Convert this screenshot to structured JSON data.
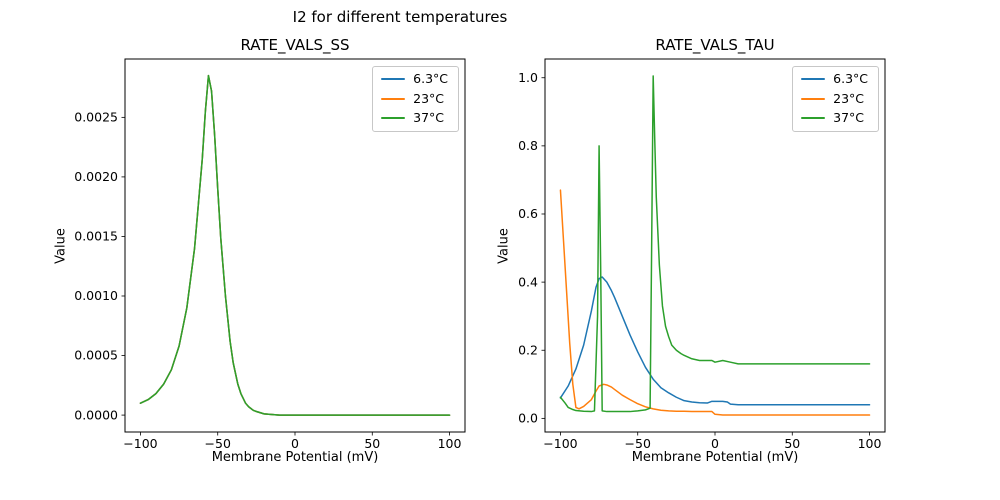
{
  "figure": {
    "suptitle": "I2 for different temperatures"
  },
  "palette": [
    "#1f77b4",
    "#ff7f0e",
    "#2ca02c"
  ],
  "chart_data": [
    {
      "type": "line",
      "title": "RATE_VALS_SS",
      "xlabel": "Membrane Potential (mV)",
      "ylabel": "Value",
      "xlim": [
        -110,
        110
      ],
      "ylim": [
        -0.000142,
        0.00299
      ],
      "xticks": [
        -100,
        -50,
        0,
        50,
        100
      ],
      "xtick_labels": [
        "−100",
        "−50",
        "0",
        "50",
        "100"
      ],
      "yticks": [
        0.0,
        0.0005,
        0.001,
        0.0015,
        0.002,
        0.0025
      ],
      "ytick_labels": [
        "0.0000",
        "0.0005",
        "0.0010",
        "0.0015",
        "0.0020",
        "0.0025"
      ],
      "legend": [
        "6.3°C",
        "23°C",
        "37°C"
      ],
      "legend_loc": "upper right",
      "grid": false,
      "overlap_note": "All three temperature series overlap exactly; green (37°C) is drawn on top. Peak ≈ 0.00285 at ≈ −56 mV.",
      "series": [
        {
          "name": "6.3°C",
          "x": [
            -100,
            -95,
            -90,
            -85,
            -80,
            -75,
            -70,
            -65,
            -60,
            -58,
            -56,
            -54,
            -52,
            -50,
            -48,
            -45,
            -42,
            -40,
            -37,
            -35,
            -32,
            -30,
            -27,
            -25,
            -20,
            -15,
            -10,
            0,
            25,
            50,
            75,
            100
          ],
          "y": [
            0.0001,
            0.00013,
            0.00018,
            0.00026,
            0.00038,
            0.00058,
            0.0009,
            0.0014,
            0.00215,
            0.00255,
            0.00285,
            0.00272,
            0.00235,
            0.0019,
            0.00148,
            0.001,
            0.00062,
            0.00044,
            0.00026,
            0.00018,
            0.0001,
            7e-05,
            4e-05,
            3e-05,
            1e-05,
            5e-06,
            0,
            0,
            0,
            0,
            0,
            0
          ]
        },
        {
          "name": "23°C",
          "x": [
            -100,
            -95,
            -90,
            -85,
            -80,
            -75,
            -70,
            -65,
            -60,
            -58,
            -56,
            -54,
            -52,
            -50,
            -48,
            -45,
            -42,
            -40,
            -37,
            -35,
            -32,
            -30,
            -27,
            -25,
            -20,
            -15,
            -10,
            0,
            25,
            50,
            75,
            100
          ],
          "y": [
            0.0001,
            0.00013,
            0.00018,
            0.00026,
            0.00038,
            0.00058,
            0.0009,
            0.0014,
            0.00215,
            0.00255,
            0.00285,
            0.00272,
            0.00235,
            0.0019,
            0.00148,
            0.001,
            0.00062,
            0.00044,
            0.00026,
            0.00018,
            0.0001,
            7e-05,
            4e-05,
            3e-05,
            1e-05,
            5e-06,
            0,
            0,
            0,
            0,
            0,
            0
          ]
        },
        {
          "name": "37°C",
          "x": [
            -100,
            -95,
            -90,
            -85,
            -80,
            -75,
            -70,
            -65,
            -60,
            -58,
            -56,
            -54,
            -52,
            -50,
            -48,
            -45,
            -42,
            -40,
            -37,
            -35,
            -32,
            -30,
            -27,
            -25,
            -20,
            -15,
            -10,
            0,
            25,
            50,
            75,
            100
          ],
          "y": [
            0.0001,
            0.00013,
            0.00018,
            0.00026,
            0.00038,
            0.00058,
            0.0009,
            0.0014,
            0.00215,
            0.00255,
            0.00285,
            0.00272,
            0.00235,
            0.0019,
            0.00148,
            0.001,
            0.00062,
            0.00044,
            0.00026,
            0.00018,
            0.0001,
            7e-05,
            4e-05,
            3e-05,
            1e-05,
            5e-06,
            0,
            0,
            0,
            0,
            0,
            0
          ]
        }
      ]
    },
    {
      "type": "line",
      "title": "RATE_VALS_TAU",
      "xlabel": "Membrane Potential (mV)",
      "ylabel": "Value",
      "xlim": [
        -110,
        110
      ],
      "ylim": [
        -0.04,
        1.055
      ],
      "xticks": [
        -100,
        -50,
        0,
        50,
        100
      ],
      "xtick_labels": [
        "−100",
        "−50",
        "0",
        "50",
        "100"
      ],
      "yticks": [
        0.0,
        0.2,
        0.4,
        0.6,
        0.8,
        1.0
      ],
      "ytick_labels": [
        "0.0",
        "0.2",
        "0.4",
        "0.6",
        "0.8",
        "1.0"
      ],
      "legend": [
        "6.3°C",
        "23°C",
        "37°C"
      ],
      "legend_loc": "upper right",
      "grid": false,
      "series": [
        {
          "name": "6.3°C",
          "x": [
            -100,
            -95,
            -90,
            -85,
            -80,
            -77,
            -75,
            -73,
            -70,
            -67,
            -65,
            -60,
            -55,
            -50,
            -45,
            -40,
            -35,
            -30,
            -25,
            -20,
            -15,
            -10,
            -5,
            -2,
            0,
            5,
            8,
            10,
            15,
            20,
            30,
            50,
            75,
            100
          ],
          "y": [
            0.06,
            0.095,
            0.145,
            0.215,
            0.315,
            0.385,
            0.41,
            0.415,
            0.4,
            0.375,
            0.355,
            0.3,
            0.245,
            0.195,
            0.15,
            0.115,
            0.09,
            0.075,
            0.062,
            0.052,
            0.048,
            0.046,
            0.045,
            0.05,
            0.05,
            0.05,
            0.048,
            0.042,
            0.04,
            0.04,
            0.04,
            0.04,
            0.04,
            0.04
          ]
        },
        {
          "name": "23°C",
          "x": [
            -100,
            -98,
            -96,
            -94,
            -92,
            -90,
            -88,
            -85,
            -80,
            -77,
            -75,
            -72,
            -70,
            -67,
            -65,
            -60,
            -55,
            -50,
            -45,
            -40,
            -35,
            -30,
            -25,
            -20,
            -15,
            -10,
            -5,
            -2,
            0,
            5,
            10,
            25,
            50,
            75,
            100
          ],
          "y": [
            0.67,
            0.52,
            0.37,
            0.22,
            0.1,
            0.032,
            0.028,
            0.035,
            0.055,
            0.08,
            0.095,
            0.1,
            0.098,
            0.092,
            0.085,
            0.068,
            0.055,
            0.043,
            0.034,
            0.028,
            0.024,
            0.022,
            0.021,
            0.021,
            0.02,
            0.02,
            0.02,
            0.02,
            0.012,
            0.01,
            0.01,
            0.01,
            0.01,
            0.01,
            0.01
          ]
        },
        {
          "name": "37°C",
          "x": [
            -100,
            -97,
            -95,
            -92,
            -90,
            -85,
            -80,
            -78,
            -76,
            -75,
            -74,
            -73,
            -70,
            -65,
            -60,
            -55,
            -50,
            -45,
            -42,
            -41,
            -40,
            -39,
            -38,
            -36,
            -34,
            -32,
            -30,
            -28,
            -25,
            -22,
            -20,
            -15,
            -10,
            -5,
            -2,
            0,
            5,
            10,
            15,
            20,
            50,
            75,
            100
          ],
          "y": [
            0.062,
            0.045,
            0.032,
            0.026,
            0.023,
            0.021,
            0.02,
            0.022,
            0.3,
            0.8,
            0.45,
            0.022,
            0.02,
            0.02,
            0.02,
            0.02,
            0.022,
            0.025,
            0.03,
            0.5,
            1.005,
            0.82,
            0.65,
            0.45,
            0.33,
            0.27,
            0.24,
            0.215,
            0.2,
            0.19,
            0.185,
            0.175,
            0.17,
            0.17,
            0.17,
            0.165,
            0.17,
            0.165,
            0.16,
            0.16,
            0.16,
            0.16,
            0.16
          ]
        }
      ]
    }
  ]
}
